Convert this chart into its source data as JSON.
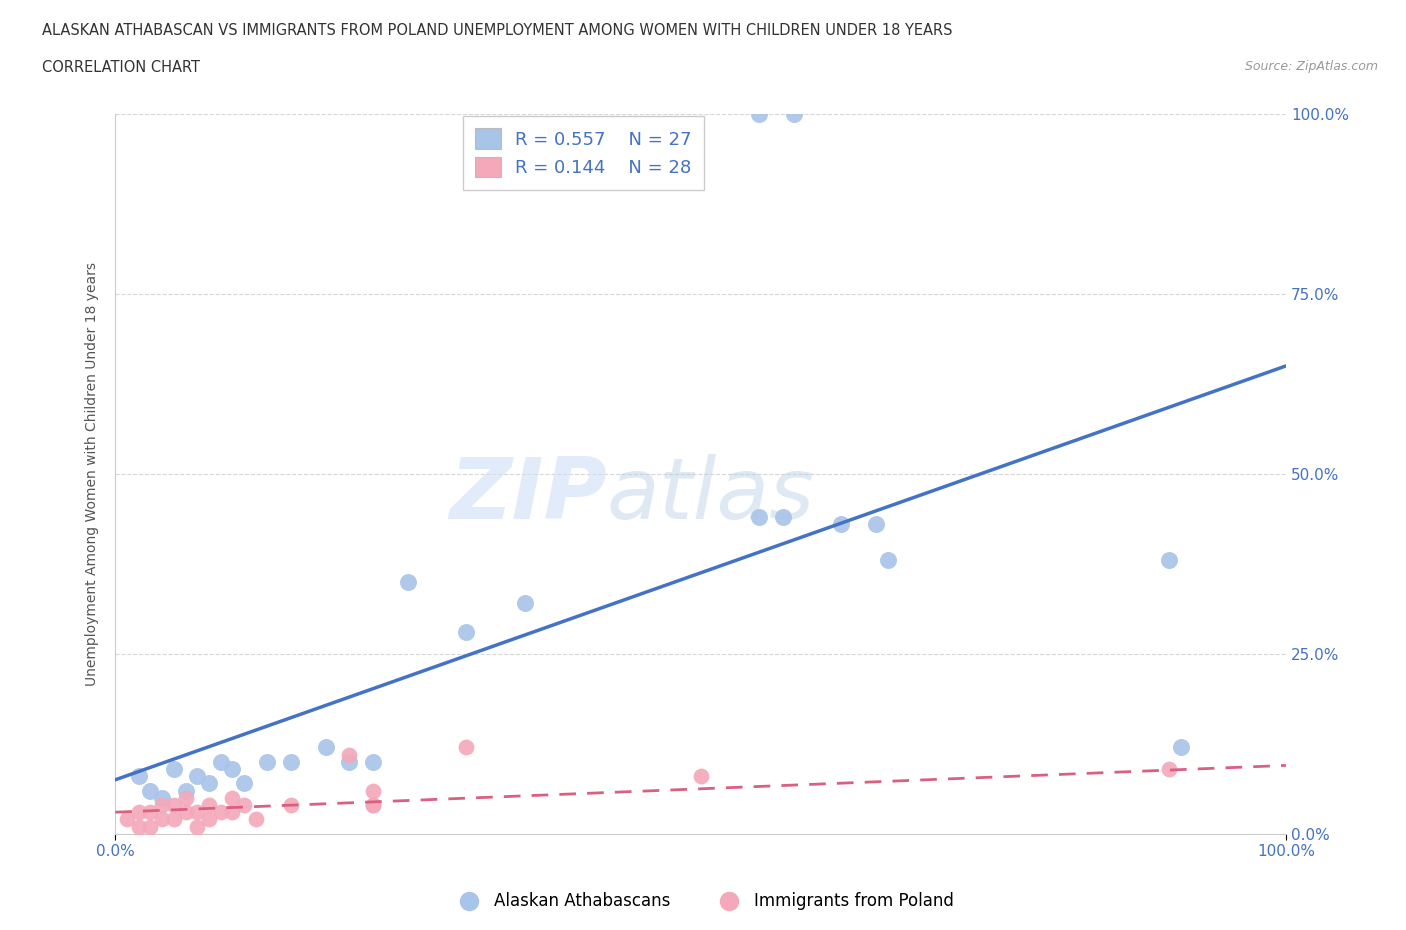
{
  "title_line1": "ALASKAN ATHABASCAN VS IMMIGRANTS FROM POLAND UNEMPLOYMENT AMONG WOMEN WITH CHILDREN UNDER 18 YEARS",
  "title_line2": "CORRELATION CHART",
  "source_text": "Source: ZipAtlas.com",
  "ylabel": "Unemployment Among Women with Children Under 18 years",
  "xlim": [
    0.0,
    1.0
  ],
  "ylim": [
    0.0,
    1.0
  ],
  "ytick_labels": [
    "0.0%",
    "25.0%",
    "50.0%",
    "75.0%",
    "100.0%"
  ],
  "ytick_positions": [
    0.0,
    0.25,
    0.5,
    0.75,
    1.0
  ],
  "watermark": "ZIPatlas",
  "blue_R": "0.557",
  "blue_N": "27",
  "pink_R": "0.144",
  "pink_N": "28",
  "blue_color": "#a8c4e8",
  "pink_color": "#f4a8ba",
  "blue_line_color": "#4472c4",
  "pink_line_color": "#d96080",
  "blue_scatter_x": [
    0.02,
    0.03,
    0.04,
    0.05,
    0.06,
    0.07,
    0.08,
    0.09,
    0.1,
    0.11,
    0.13,
    0.15,
    0.18,
    0.2,
    0.22,
    0.25,
    0.3,
    0.35,
    0.55,
    0.58,
    0.62,
    0.65,
    0.66,
    0.9,
    0.91,
    0.55,
    0.57
  ],
  "blue_scatter_y": [
    0.08,
    0.06,
    0.05,
    0.09,
    0.06,
    0.08,
    0.07,
    0.1,
    0.09,
    0.07,
    0.1,
    0.1,
    0.12,
    0.1,
    0.1,
    0.35,
    0.28,
    0.32,
    1.0,
    1.0,
    0.43,
    0.43,
    0.38,
    0.38,
    0.12,
    0.44,
    0.44
  ],
  "pink_scatter_x": [
    0.01,
    0.02,
    0.02,
    0.03,
    0.03,
    0.04,
    0.04,
    0.05,
    0.05,
    0.06,
    0.06,
    0.07,
    0.07,
    0.08,
    0.08,
    0.09,
    0.1,
    0.1,
    0.11,
    0.12,
    0.15,
    0.2,
    0.22,
    0.22,
    0.22,
    0.3,
    0.5,
    0.9
  ],
  "pink_scatter_y": [
    0.02,
    0.03,
    0.01,
    0.03,
    0.01,
    0.04,
    0.02,
    0.04,
    0.02,
    0.03,
    0.05,
    0.03,
    0.01,
    0.04,
    0.02,
    0.03,
    0.03,
    0.05,
    0.04,
    0.02,
    0.04,
    0.11,
    0.04,
    0.06,
    0.04,
    0.12,
    0.08,
    0.09
  ],
  "blue_trend_x": [
    0.0,
    1.0
  ],
  "blue_trend_y": [
    0.075,
    0.65
  ],
  "pink_trend_x": [
    0.0,
    1.0
  ],
  "pink_trend_y": [
    0.03,
    0.095
  ],
  "grid_color": "#cccccc",
  "background_color": "#ffffff",
  "title_color": "#333333",
  "axis_label_color": "#555555",
  "tick_color": "#4472c4",
  "legend_box_color_blue": "#a8c4e8",
  "legend_box_color_pink": "#f4a8ba"
}
